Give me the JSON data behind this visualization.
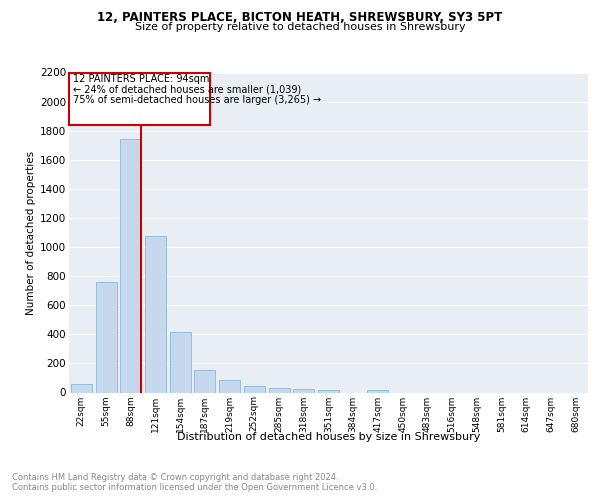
{
  "title1": "12, PAINTERS PLACE, BICTON HEATH, SHREWSBURY, SY3 5PT",
  "title2": "Size of property relative to detached houses in Shrewsbury",
  "xlabel": "Distribution of detached houses by size in Shrewsbury",
  "ylabel": "Number of detached properties",
  "bar_labels": [
    "22sqm",
    "55sqm",
    "88sqm",
    "121sqm",
    "154sqm",
    "187sqm",
    "219sqm",
    "252sqm",
    "285sqm",
    "318sqm",
    "351sqm",
    "384sqm",
    "417sqm",
    "450sqm",
    "483sqm",
    "516sqm",
    "548sqm",
    "581sqm",
    "614sqm",
    "647sqm",
    "680sqm"
  ],
  "bar_values": [
    60,
    760,
    1740,
    1075,
    415,
    155,
    85,
    45,
    30,
    25,
    20,
    0,
    15,
    0,
    0,
    0,
    0,
    0,
    0,
    0,
    0
  ],
  "bar_color": "#c5d8ed",
  "bar_edge_color": "#7aafd4",
  "annotation_text_line1": "12 PAINTERS PLACE: 94sqm",
  "annotation_text_line2": "← 24% of detached houses are smaller (1,039)",
  "annotation_text_line3": "75% of semi-detached houses are larger (3,265) →",
  "red_line_color": "#cc0000",
  "box_color": "#cc0000",
  "ylim": [
    0,
    2200
  ],
  "yticks": [
    0,
    200,
    400,
    600,
    800,
    1000,
    1200,
    1400,
    1600,
    1800,
    2000,
    2200
  ],
  "footer_line1": "Contains HM Land Registry data © Crown copyright and database right 2024.",
  "footer_line2": "Contains public sector information licensed under the Open Government Licence v3.0.",
  "plot_bg_color": "#e8eef4"
}
